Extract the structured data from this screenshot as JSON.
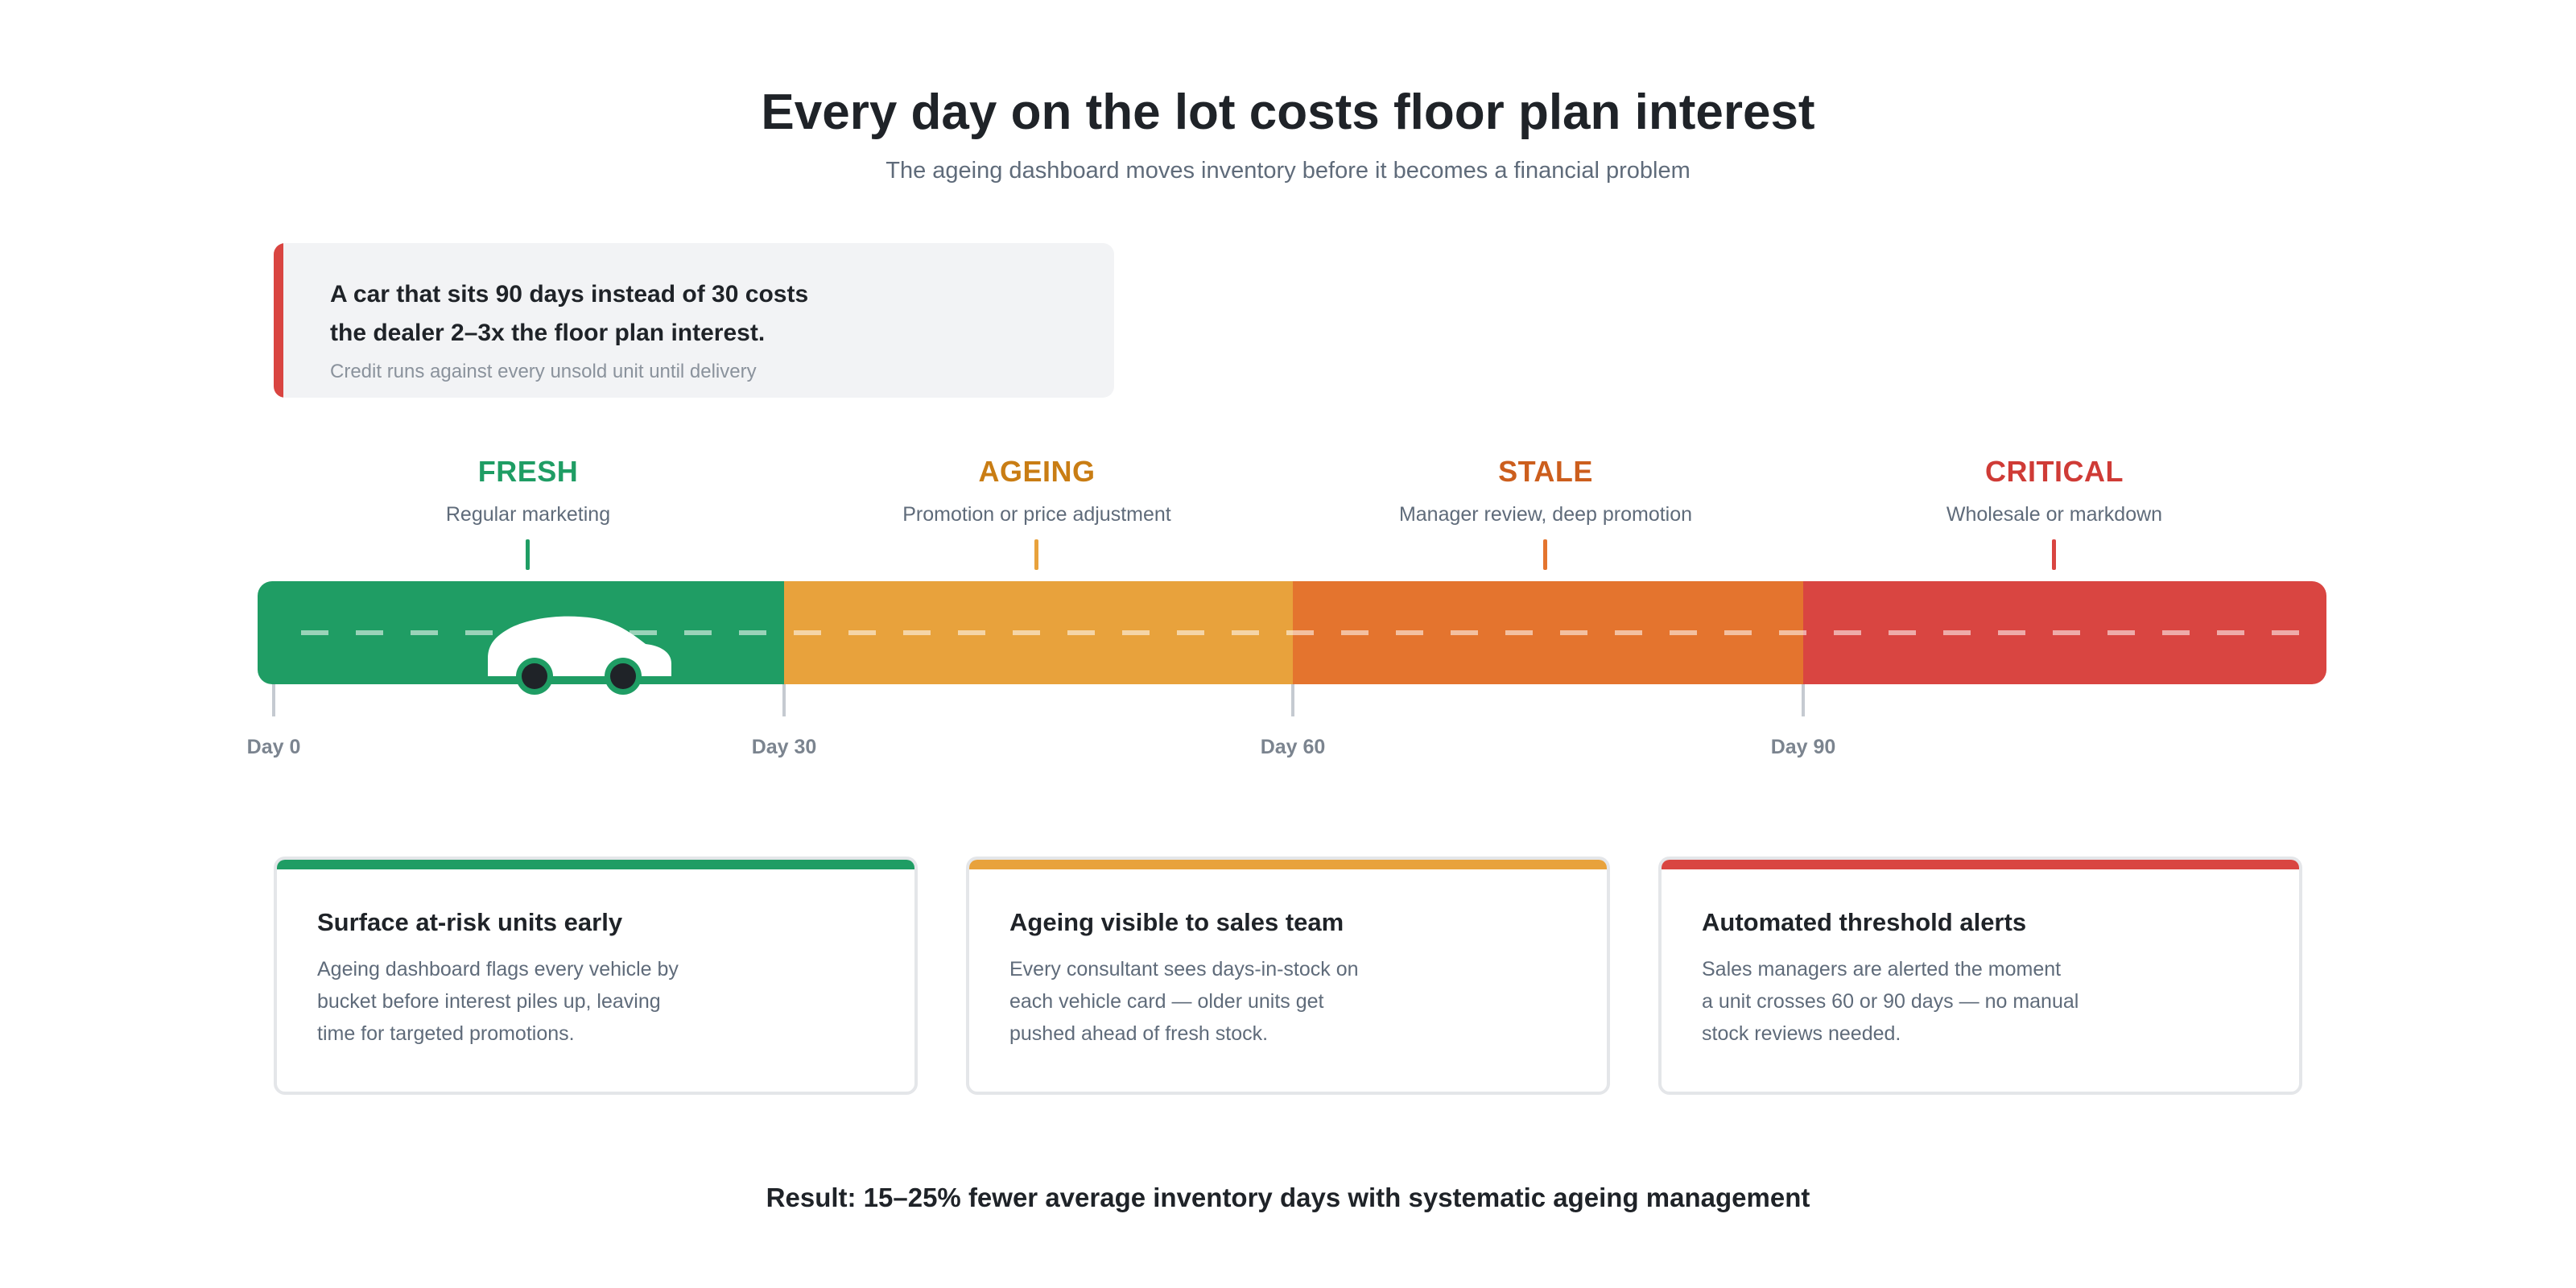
{
  "header": {
    "title": "Every day on the lot costs floor plan interest",
    "subtitle": "The ageing dashboard moves inventory before it becomes a financial problem"
  },
  "callout": {
    "line1": "A car that sits 90 days instead of 30 costs",
    "line2": "the dealer 2–3x the floor plan interest.",
    "note": "Credit runs against every unsold unit until delivery",
    "accent_color": "#d94541"
  },
  "stages": [
    {
      "name": "FRESH",
      "action": "Regular marketing",
      "color": "#1f9d64",
      "label_color": "#1f9d64"
    },
    {
      "name": "AGEING",
      "action": "Promotion or price adjustment",
      "color": "#e8a23c",
      "label_color": "#c97d14"
    },
    {
      "name": "STALE",
      "action": "Manager review, deep promotion",
      "color": "#e4742e",
      "label_color": "#cc5e1d"
    },
    {
      "name": "CRITICAL",
      "action": "Wholesale or markdown",
      "color": "#d94541",
      "label_color": "#cf3b36"
    }
  ],
  "days": [
    "Day 0",
    "Day 30",
    "Day 60",
    "Day 90"
  ],
  "cards": [
    {
      "title": "Surface at-risk units early",
      "lines": [
        "Ageing dashboard flags every vehicle by",
        "bucket before interest piles up, leaving",
        "time for targeted promotions."
      ],
      "accent_color": "#1f9d64"
    },
    {
      "title": "Ageing visible to sales team",
      "lines": [
        "Every consultant sees days-in-stock on",
        "each vehicle card — older units get",
        "pushed ahead of fresh stock."
      ],
      "accent_color": "#e8a23c"
    },
    {
      "title": "Automated threshold alerts",
      "lines": [
        "Sales managers are alerted the moment",
        "a unit crosses 60 or 90 days — no manual",
        "stock reviews needed."
      ],
      "accent_color": "#d94541"
    }
  ],
  "footer": {
    "result": "Result: 15–25% fewer average inventory days with systematic ageing management"
  },
  "icons": {
    "vehicle": "car-icon"
  }
}
